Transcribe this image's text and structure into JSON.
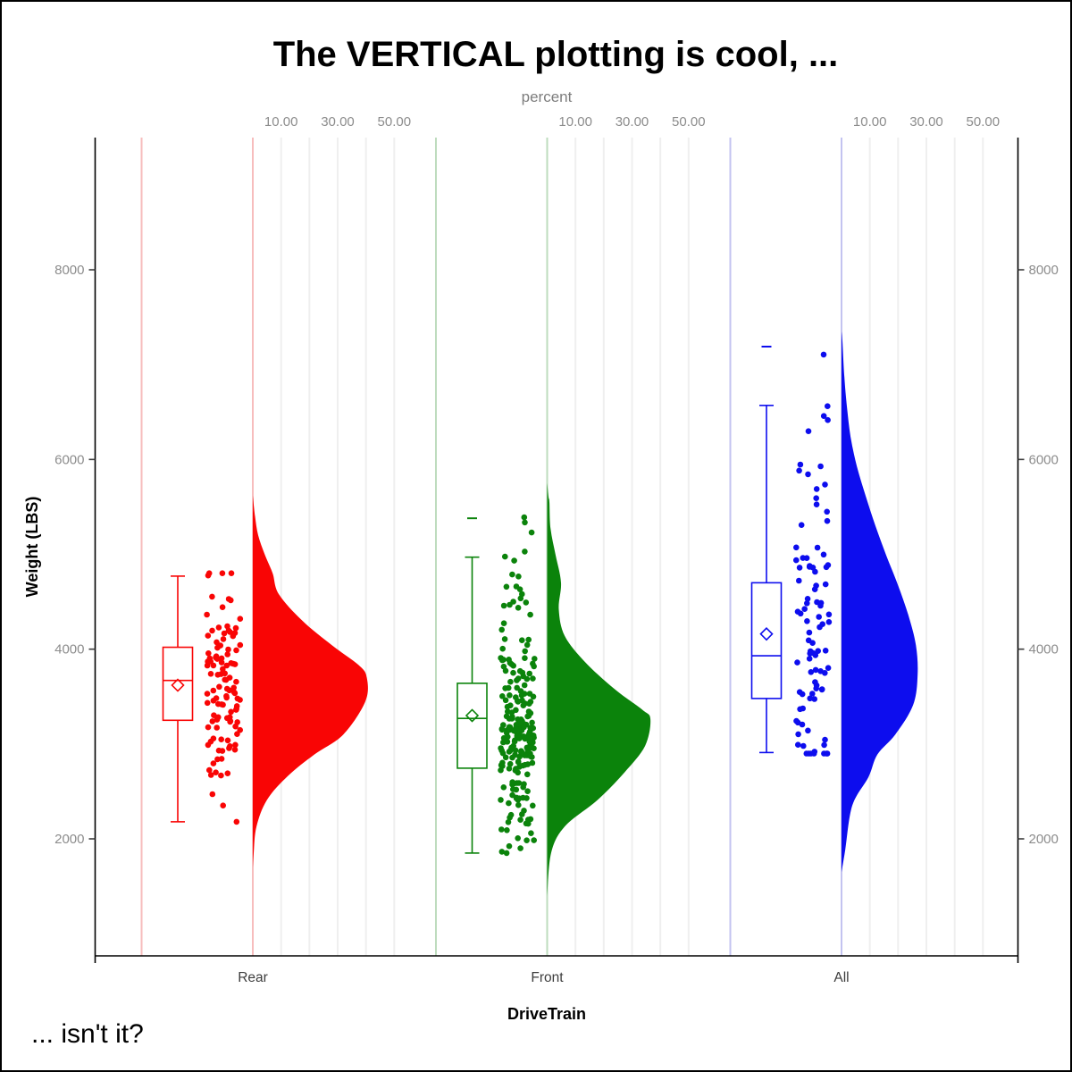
{
  "title": "The VERTICAL plotting is cool, ...",
  "footnote": "... isn't it?",
  "top_axis": {
    "label": "percent",
    "tick_labels": [
      "10.00",
      "30.00",
      "50.00"
    ]
  },
  "left_axis": {
    "label": "Weight (LBS)",
    "tick_labels": [
      "2000",
      "4000",
      "6000",
      "8000"
    ]
  },
  "bottom_axis": {
    "label": "DriveTrain",
    "categories": [
      "Rear",
      "Front",
      "All"
    ]
  },
  "colors": {
    "rear": "#f90505",
    "rear_light": "#f7bdbd",
    "front": "#0b830b",
    "front_light": "#bedcbe",
    "all": "#0d0dee",
    "all_light": "#c3c3f0",
    "gridline": "#efefef",
    "axis": "#000000",
    "tick_text": "#8c8c8c"
  },
  "chart_data": {
    "type": "raincloud (half-violin + box + jitter strip)",
    "orientation": "vertical",
    "title": "The VERTICAL plotting is cool, ...",
    "xlabel": "DriveTrain",
    "ylabel": "Weight (LBS)",
    "y_ticks": [
      2000,
      4000,
      6000,
      8000
    ],
    "y_range": [
      770,
      9390
    ],
    "percent_axis": {
      "label": "percent",
      "ticks": [
        10,
        30,
        50
      ],
      "gridlines": [
        10,
        20,
        30,
        40,
        50
      ]
    },
    "x_categories": [
      "Rear",
      "Front",
      "All"
    ],
    "jitter_seed": 42,
    "groups": [
      {
        "name": "Rear",
        "color": "#f90505",
        "light_color": "#f7bdbd",
        "n": 110,
        "box": {
          "whisker_low": 2180,
          "q1": 3250,
          "median": 3670,
          "mean": 3620,
          "q3": 4020,
          "whisker_high": 4770
        },
        "outliers": [],
        "data_range": [
          2180,
          4800
        ],
        "density_weight_vs_percent": [
          [
            5620,
            0
          ],
          [
            5400,
            0.8
          ],
          [
            5200,
            1.9
          ],
          [
            5000,
            4.2
          ],
          [
            4800,
            7.0
          ],
          [
            4580,
            9.2
          ],
          [
            4300,
            17.5
          ],
          [
            4040,
            28.0
          ],
          [
            3830,
            37.5
          ],
          [
            3700,
            40.3
          ],
          [
            3450,
            39.8
          ],
          [
            3100,
            32.0
          ],
          [
            2890,
            21.8
          ],
          [
            2660,
            12.3
          ],
          [
            2410,
            5.0
          ],
          [
            2130,
            1.3
          ],
          [
            1850,
            0.3
          ],
          [
            1700,
            0
          ]
        ]
      },
      {
        "name": "Front",
        "color": "#0b830b",
        "light_color": "#bedcbe",
        "n": 226,
        "box": {
          "whisker_low": 1850,
          "q1": 2745,
          "median": 3270,
          "mean": 3300,
          "q3": 3640,
          "whisker_high": 4970
        },
        "outliers": [
          5380
        ],
        "data_range": [
          1850,
          5390
        ],
        "density_weight_vs_percent": [
          [
            5750,
            0
          ],
          [
            5600,
            0.5
          ],
          [
            5550,
            0.8
          ],
          [
            5270,
            1.2
          ],
          [
            4990,
            3.0
          ],
          [
            4700,
            4.9
          ],
          [
            4420,
            4.1
          ],
          [
            4140,
            6.2
          ],
          [
            3860,
            13.5
          ],
          [
            3570,
            24.2
          ],
          [
            3360,
            33.7
          ],
          [
            3260,
            36.5
          ],
          [
            2980,
            34.6
          ],
          [
            2700,
            27.3
          ],
          [
            2410,
            17.8
          ],
          [
            2130,
            6.2
          ],
          [
            1850,
            1.4
          ],
          [
            1400,
            0
          ]
        ]
      },
      {
        "name": "All",
        "color": "#0d0dee",
        "light_color": "#c3c3f0",
        "n": 92,
        "box": {
          "whisker_low": 2910,
          "q1": 3480,
          "median": 3930,
          "mean": 4160,
          "q3": 4700,
          "whisker_high": 6570
        },
        "outliers": [
          7190
        ],
        "data_range": [
          2900,
          7190
        ],
        "density_weight_vs_percent": [
          [
            7350,
            0
          ],
          [
            7250,
            0.3
          ],
          [
            6870,
            1.0
          ],
          [
            6560,
            1.9
          ],
          [
            6240,
            3.2
          ],
          [
            5930,
            5.4
          ],
          [
            5620,
            8.5
          ],
          [
            5300,
            12.0
          ],
          [
            4990,
            15.8
          ],
          [
            4680,
            19.9
          ],
          [
            4350,
            23.7
          ],
          [
            4040,
            26.3
          ],
          [
            3730,
            26.9
          ],
          [
            3410,
            25.3
          ],
          [
            3100,
            19.0
          ],
          [
            2890,
            12.7
          ],
          [
            2650,
            9.5
          ],
          [
            2350,
            3.8
          ],
          [
            1880,
            1.3
          ],
          [
            1650,
            0
          ]
        ]
      }
    ]
  }
}
